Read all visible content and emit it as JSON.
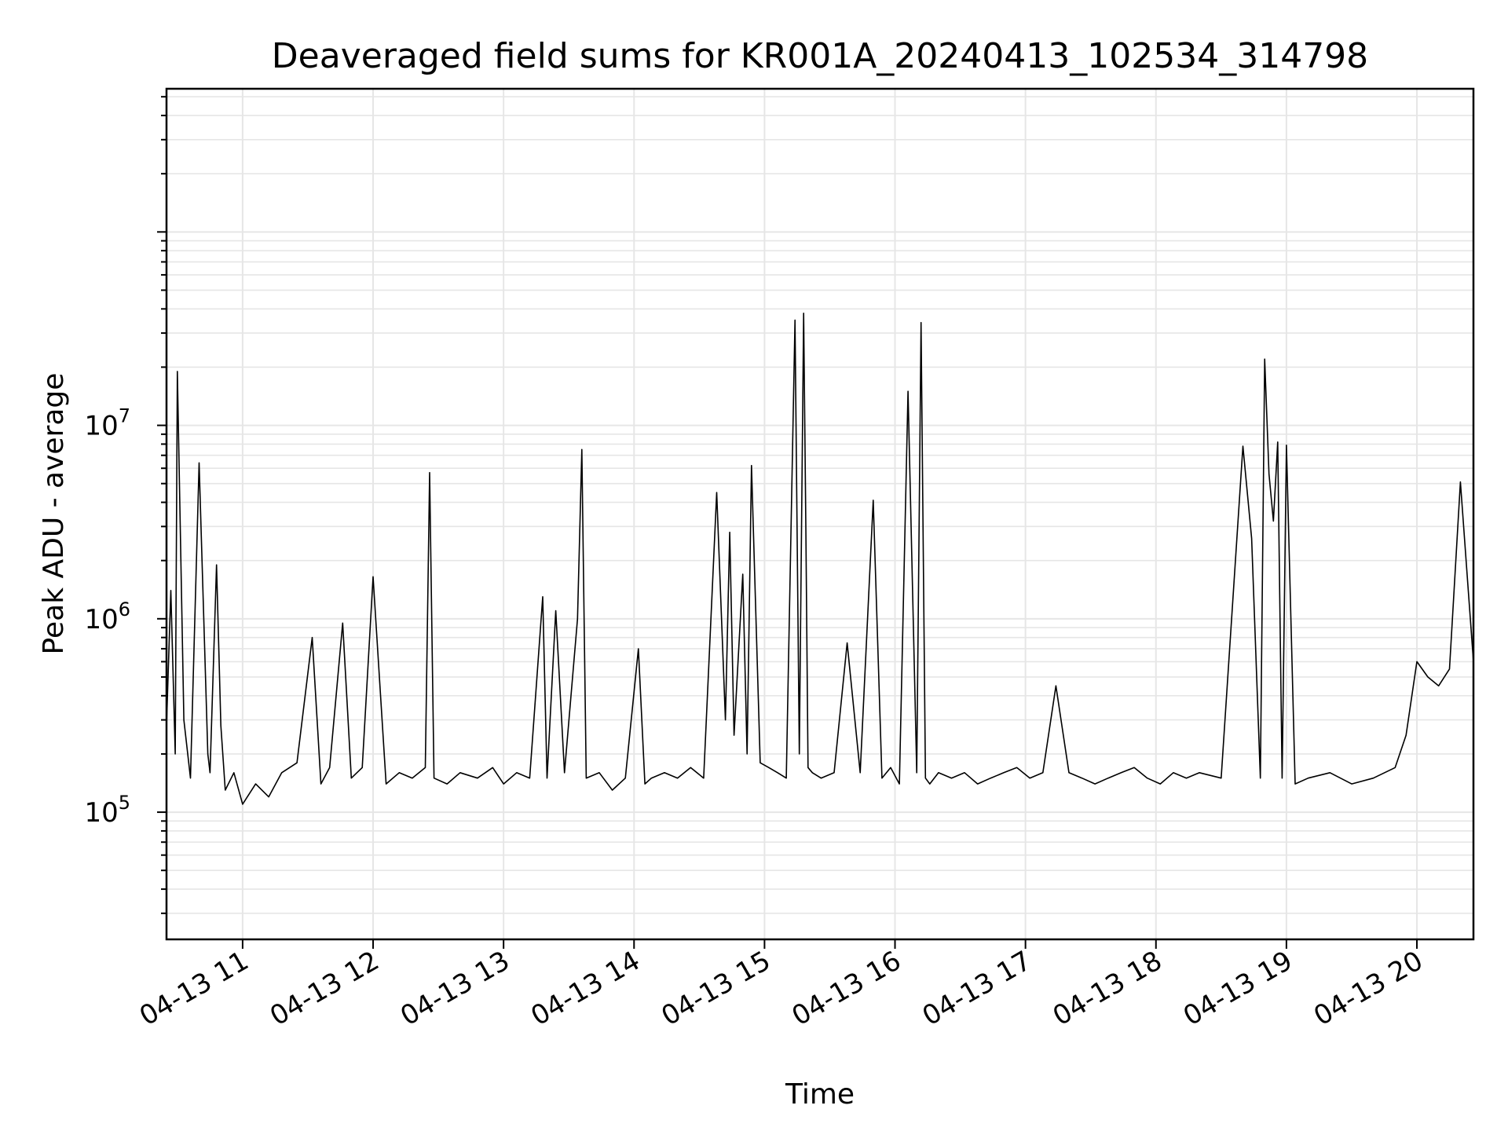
{
  "chart_data": {
    "type": "line",
    "title": "Deaveraged field sums for KR001A_20240413_102534_314798",
    "xlabel": "Time",
    "ylabel": "Peak ADU - average",
    "yscale": "log",
    "xlim": [
      "2024-04-13 10:25",
      "2024-04-13 20:26"
    ],
    "ylim": [
      22000,
      550000000
    ],
    "grid": true,
    "x_ticks": [
      "04-13 11",
      "04-13 12",
      "04-13 13",
      "04-13 14",
      "04-13 15",
      "04-13 16",
      "04-13 17",
      "04-13 18",
      "04-13 19",
      "04-13 20"
    ],
    "y_ticks": [
      {
        "base": "10",
        "exp": "5",
        "value": 100000
      },
      {
        "base": "10",
        "exp": "6",
        "value": 1000000
      },
      {
        "base": "10",
        "exp": "7",
        "value": 10000000
      }
    ],
    "series": [
      {
        "color": "#000000",
        "x": [
          "10:25",
          "10:27",
          "10:29",
          "10:30",
          "10:33",
          "10:36",
          "10:40",
          "10:44",
          "10:45",
          "10:48",
          "10:50",
          "10:52",
          "10:56",
          "11:00",
          "11:06",
          "11:12",
          "11:18",
          "11:25",
          "11:32",
          "11:36",
          "11:40",
          "11:46",
          "11:50",
          "11:55",
          "12:00",
          "12:06",
          "12:12",
          "12:18",
          "12:24",
          "12:26",
          "12:28",
          "12:34",
          "12:40",
          "12:48",
          "12:55",
          "13:00",
          "13:06",
          "13:12",
          "13:18",
          "13:20",
          "13:24",
          "13:28",
          "13:34",
          "13:36",
          "13:38",
          "13:44",
          "13:50",
          "13:56",
          "14:02",
          "14:05",
          "14:08",
          "14:14",
          "14:20",
          "14:26",
          "14:32",
          "14:38",
          "14:42",
          "14:44",
          "14:46",
          "14:50",
          "14:52",
          "14:54",
          "14:58",
          "15:02",
          "15:06",
          "15:10",
          "15:14",
          "15:16",
          "15:18",
          "15:19",
          "15:20",
          "15:22",
          "15:26",
          "15:32",
          "15:38",
          "15:44",
          "15:50",
          "15:54",
          "15:58",
          "16:02",
          "16:06",
          "16:10",
          "16:12",
          "16:14",
          "16:16",
          "16:20",
          "16:26",
          "16:32",
          "16:38",
          "16:44",
          "16:50",
          "16:56",
          "17:02",
          "17:08",
          "17:14",
          "17:20",
          "17:26",
          "17:32",
          "17:38",
          "17:44",
          "17:50",
          "17:56",
          "18:02",
          "18:08",
          "18:14",
          "18:20",
          "18:30",
          "18:40",
          "18:44",
          "18:48",
          "18:50",
          "18:52",
          "18:54",
          "18:56",
          "18:58",
          "19:00",
          "19:04",
          "19:10",
          "19:20",
          "19:30",
          "19:40",
          "19:50",
          "19:55",
          "20:00",
          "20:05",
          "20:10",
          "20:15",
          "20:20",
          "20:26"
        ],
        "values": [
          280000,
          1400000,
          200000,
          19000000,
          300000,
          150000,
          6400000,
          200000,
          160000,
          1900000,
          280000,
          130000,
          160000,
          110000,
          140000,
          120000,
          160000,
          180000,
          800000,
          140000,
          170000,
          950000,
          150000,
          170000,
          1650000,
          140000,
          160000,
          150000,
          170000,
          5700000,
          150000,
          140000,
          160000,
          150000,
          170000,
          140000,
          160000,
          150000,
          1300000,
          150000,
          1100000,
          160000,
          1000000,
          7500000,
          150000,
          160000,
          130000,
          150000,
          700000,
          140000,
          150000,
          160000,
          150000,
          170000,
          150000,
          4500000,
          300000,
          2800000,
          250000,
          1700000,
          200000,
          6200000,
          180000,
          170000,
          160000,
          150000,
          35000000,
          200000,
          38000000,
          3000000,
          170000,
          160000,
          150000,
          160000,
          750000,
          160000,
          4100000,
          150000,
          170000,
          140000,
          15000000,
          160000,
          34000000,
          150000,
          140000,
          160000,
          150000,
          160000,
          140000,
          150000,
          160000,
          170000,
          150000,
          160000,
          450000,
          160000,
          150000,
          140000,
          150000,
          160000,
          170000,
          150000,
          140000,
          160000,
          150000,
          160000,
          150000,
          7800000,
          2600000,
          150000,
          22000000,
          5600000,
          3200000,
          8200000,
          150000,
          7900000,
          140000,
          150000,
          160000,
          140000,
          150000,
          170000,
          250000,
          600000,
          500000,
          450000,
          550000,
          5100000,
          600000
        ]
      }
    ]
  }
}
